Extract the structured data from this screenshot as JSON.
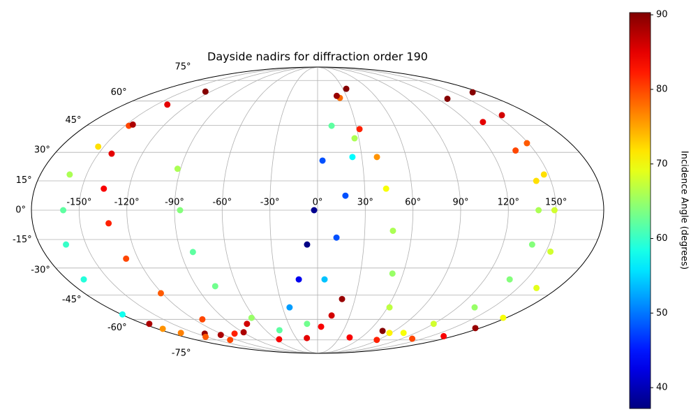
{
  "chart_data": {
    "type": "scatter",
    "projection": "mollweide",
    "title": "Dayside nadirs for diffraction order 190",
    "xlim": [
      -180,
      180
    ],
    "ylim": [
      -90,
      90
    ],
    "xticks": [
      {
        "value": -150,
        "label": "-150°"
      },
      {
        "value": -120,
        "label": "-120°"
      },
      {
        "value": -90,
        "label": "-90°"
      },
      {
        "value": -60,
        "label": "-60°"
      },
      {
        "value": -30,
        "label": "-30°"
      },
      {
        "value": 0,
        "label": "0°"
      },
      {
        "value": 30,
        "label": "30°"
      },
      {
        "value": 60,
        "label": "60°"
      },
      {
        "value": 90,
        "label": "90°"
      },
      {
        "value": 120,
        "label": "120°"
      },
      {
        "value": 150,
        "label": "150°"
      }
    ],
    "yticks": [
      {
        "value": -75,
        "label": "-75°"
      },
      {
        "value": -60,
        "label": "-60°"
      },
      {
        "value": -45,
        "label": "-45°"
      },
      {
        "value": -30,
        "label": "-30°"
      },
      {
        "value": -15,
        "label": "-15°"
      },
      {
        "value": 0,
        "label": "0°"
      },
      {
        "value": 15,
        "label": "15°"
      },
      {
        "value": 30,
        "label": "30°"
      },
      {
        "value": 45,
        "label": "45°"
      },
      {
        "value": 60,
        "label": "60°"
      },
      {
        "value": 75,
        "label": "75°"
      }
    ],
    "grid": true,
    "colormap": "jet",
    "clim": [
      37.2,
      90.3
    ],
    "cticks": [
      40,
      50,
      60,
      70,
      80,
      90
    ],
    "colorbar_label": "Incidence Angle (degrees)",
    "series": [
      {
        "x": [
          -126,
          -140,
          -147,
          -154,
          -161,
          -160,
          -163,
          -168,
          -179
        ],
        "y": [
          66.5,
          57.7,
          44.8,
          33.1,
          18.3,
          0,
          -17.6,
          -36.2,
          -56.8
        ],
        "values": [
          90,
          85,
          80,
          72,
          66,
          62,
          60,
          59,
          58
        ]
      },
      {
        "x": [
          -145,
          -141,
          -136,
          -132,
          -128,
          -121,
          -112,
          -103,
          -56,
          -15
        ],
        "y": [
          45.5,
          29.3,
          11,
          -6.7,
          -25,
          -44,
          -60,
          -70,
          -74.5,
          -73.5
        ],
        "values": [
          88,
          85,
          84,
          82,
          80,
          79,
          80,
          82,
          84,
          85
        ]
      },
      {
        "x": [
          -92,
          -86.5,
          -82,
          -76,
          -63
        ],
        "y": [
          21.3,
          0,
          -21.5,
          -40,
          -59
        ],
        "values": [
          66,
          64,
          62,
          63,
          65
        ]
      },
      {
        "x": [
          -73,
          -89,
          -140,
          -124
        ],
        "y": [
          -63,
          -69,
          -70,
          -71
        ],
        "values": [
          86,
          88,
          89,
          88
        ]
      },
      {
        "x": [
          -174,
          -174,
          -167,
          -151,
          -130
        ],
        "y": [
          -63,
          -66.5,
          -69.5,
          -72.5,
          -75
        ],
        "values": [
          88,
          76,
          77,
          79,
          80
        ]
      },
      {
        "x": [
          22.6,
          10.9,
          3.3,
          -2.2,
          -6.8,
          -13.5,
          -24,
          -44
        ],
        "y": [
          62.1,
          44.8,
          25.6,
          0,
          -17.6,
          -36.2,
          -52.4,
          -67.5
        ],
        "values": [
          78,
          62,
          48,
          38,
          37.5,
          43,
          52,
          62
        ]
      },
      {
        "x": [
          26.9,
          23.6,
          17.6,
          12.1,
          5,
          -10.9
        ],
        "y": [
          37.7,
          27.5,
          7.4,
          -14,
          -36.2,
          -63
        ],
        "values": [
          66,
          57,
          48,
          48,
          54,
          63
        ]
      },
      {
        "x": [
          34,
          20,
          32,
          40.2,
          43.6,
          47.9,
          52.5,
          61.6,
          87.8
        ],
        "y": [
          68.5,
          63.5,
          42.9,
          27.5,
          11,
          -10.5,
          -33,
          -52.4,
          -69.5
        ],
        "values": [
          90,
          89,
          82,
          76,
          70,
          66,
          65,
          67,
          71
        ]
      },
      {
        "x": [
          172,
          155,
          149,
          147,
          149,
          153,
          164,
          177
        ],
        "y": [
          66,
          51.1,
          35,
          18.3,
          0,
          -21.3,
          -41,
          -59
        ],
        "values": [
          90,
          86,
          79,
          72,
          68,
          68,
          69,
          70
        ]
      },
      {
        "x": [
          130,
          132,
          137,
          140.5,
          139,
          139,
          138,
          134.5,
          120,
          105
        ],
        "y": [
          61.5,
          47,
          31,
          15,
          0,
          -17.6,
          -36.2,
          -52.4,
          -63,
          -69.5
        ],
        "values": [
          90,
          85,
          80,
          72,
          66,
          64,
          64,
          65,
          68,
          70
        ]
      },
      {
        "x": [
          76,
          135,
          167,
          175
        ],
        "y": [
          -68,
          -74,
          -72,
          -66
        ],
        "values": [
          90,
          80,
          84,
          89
        ]
      },
      {
        "x": [
          19.6,
          13,
          3.8,
          44,
          88
        ],
        "y": [
          -47.4,
          -57.5,
          -65,
          -73,
          -75
        ],
        "values": [
          89,
          86,
          84,
          84,
          82
        ]
      }
    ]
  }
}
